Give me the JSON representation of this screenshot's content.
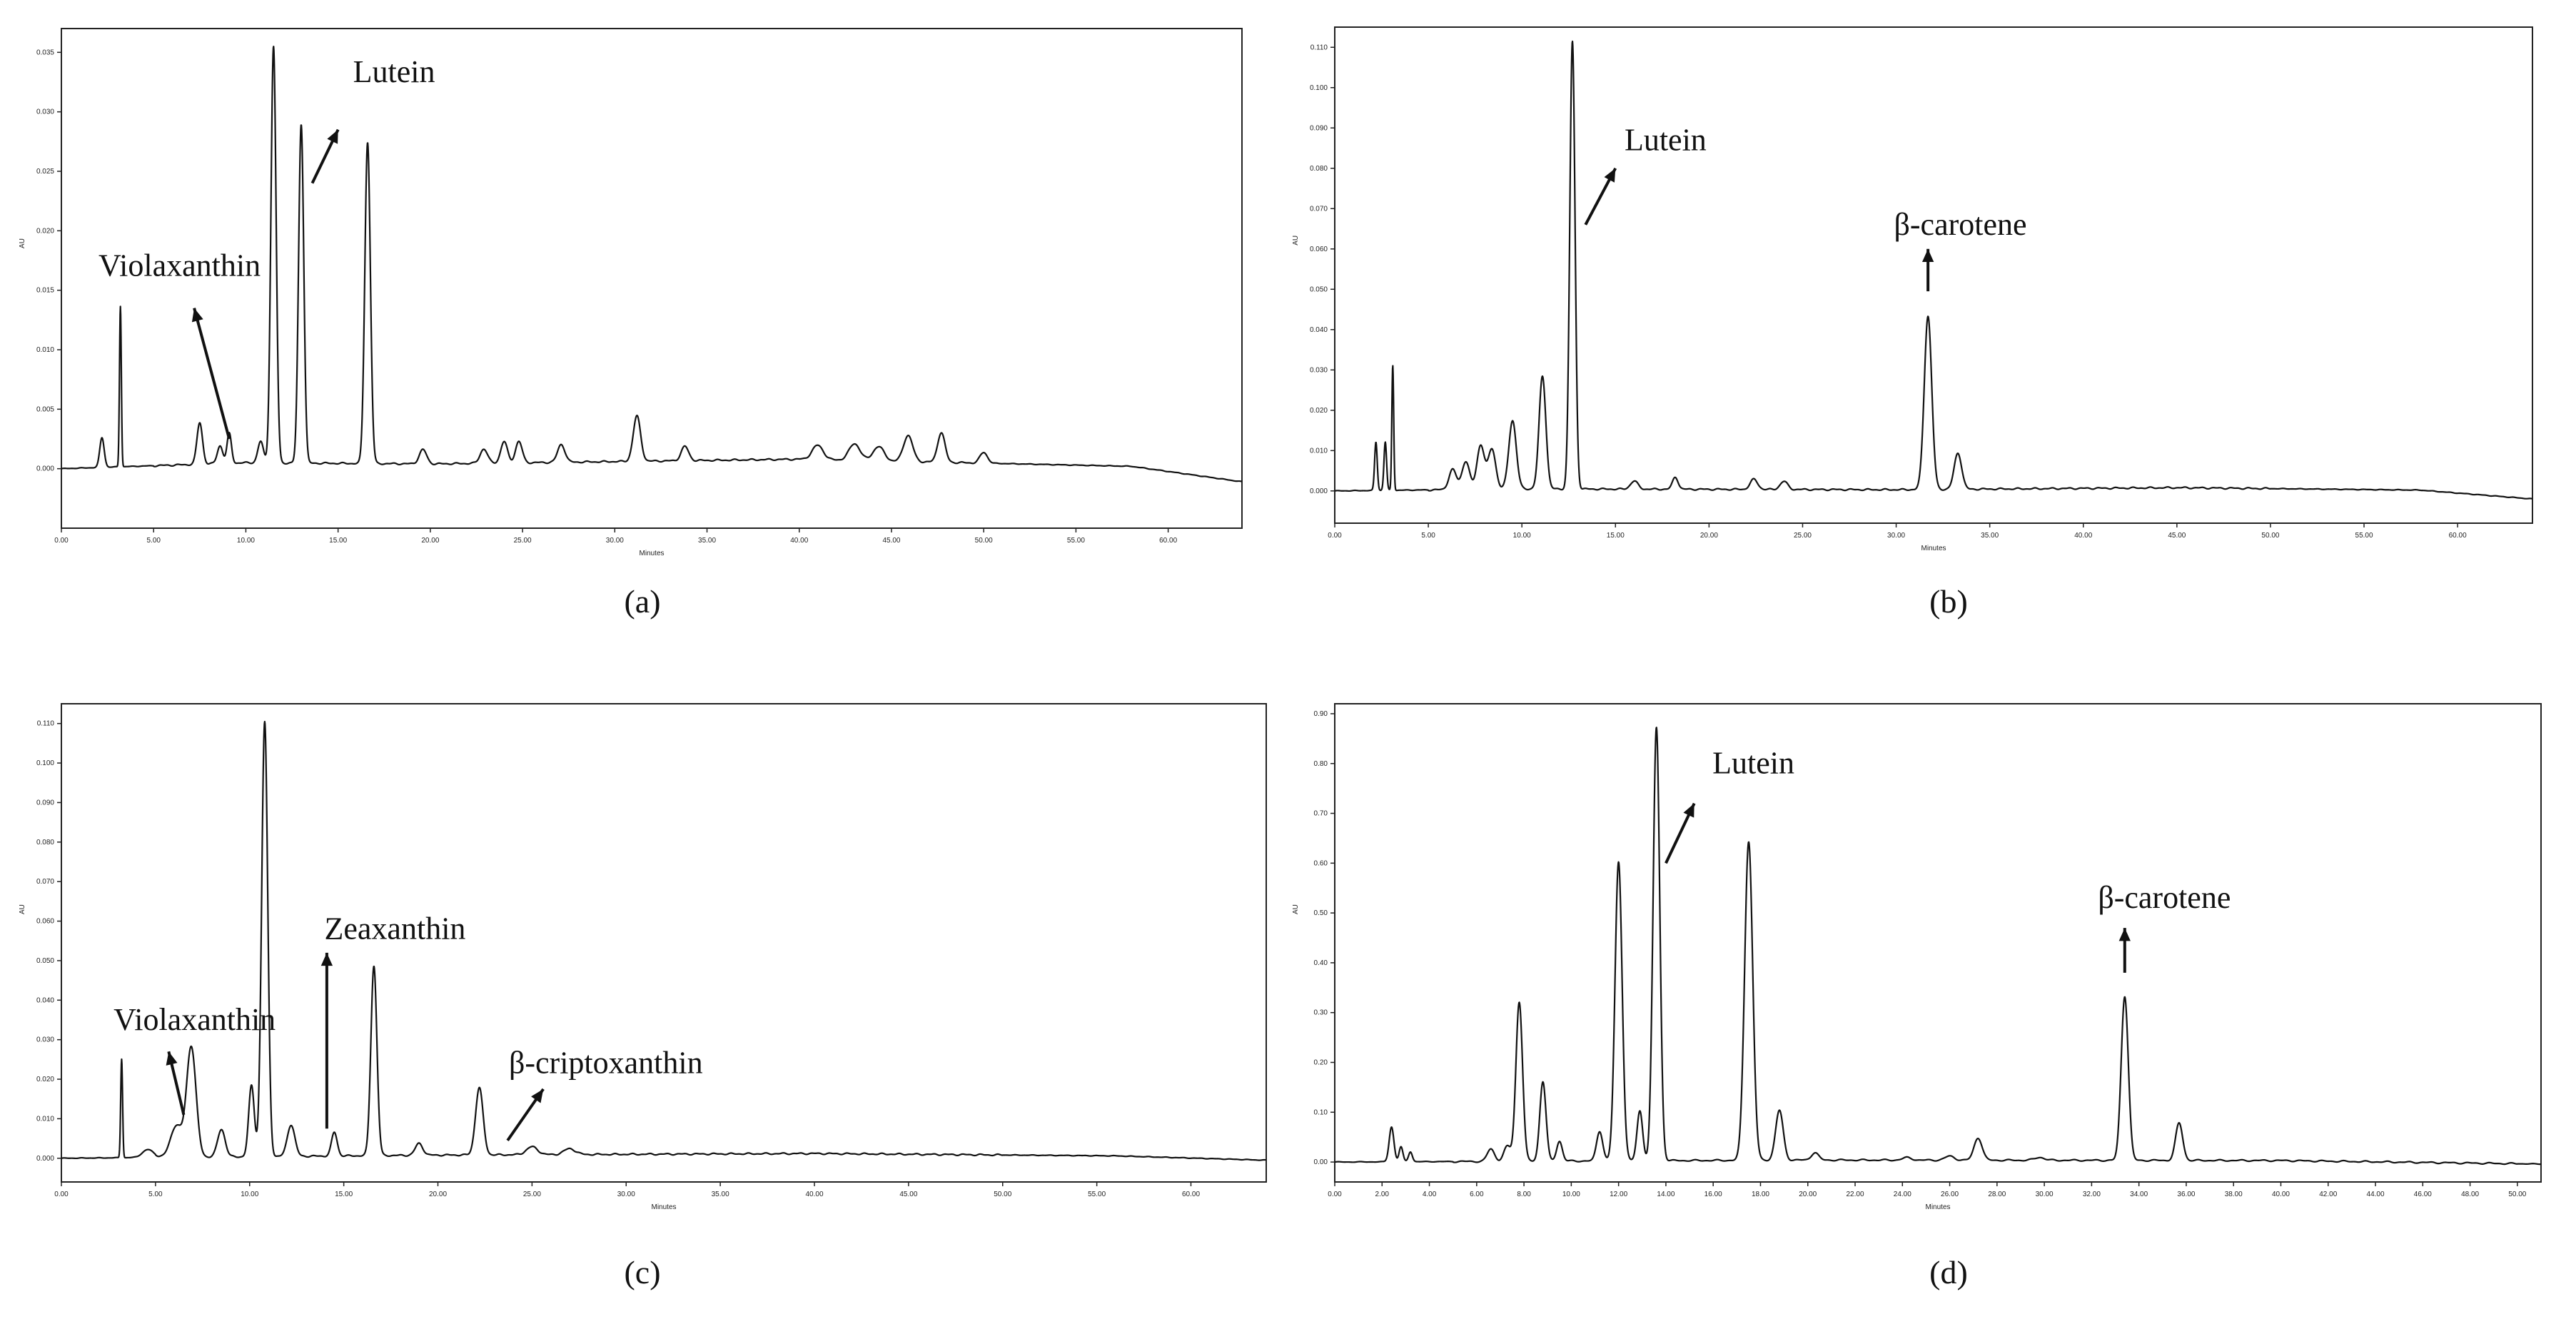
{
  "chart_data": [
    {
      "id": "a",
      "type": "line",
      "caption": "(a)",
      "ylabel": "AU",
      "xlabel": "Minutes",
      "xlim": [
        0,
        64
      ],
      "ylim": [
        -0.005,
        0.037
      ],
      "xticks": [
        "0.00",
        "5.00",
        "10.00",
        "15.00",
        "20.00",
        "25.00",
        "30.00",
        "35.00",
        "40.00",
        "45.00",
        "50.00",
        "55.00",
        "60.00"
      ],
      "xtick_values": [
        0,
        5,
        10,
        15,
        20,
        25,
        30,
        35,
        40,
        45,
        50,
        55,
        60
      ],
      "yticks": [
        "0.000",
        "0.005",
        "0.010",
        "0.015",
        "0.020",
        "0.025",
        "0.030",
        "0.035"
      ],
      "ytick_values": [
        0,
        0.005,
        0.01,
        0.015,
        0.02,
        0.025,
        0.03,
        0.035
      ],
      "baseline": [
        [
          0,
          0
        ],
        [
          10,
          0.0005
        ],
        [
          20,
          0.0004
        ],
        [
          40,
          0.0008
        ],
        [
          55,
          0.0003
        ],
        [
          58,
          0.0002
        ],
        [
          64,
          -0.0011
        ]
      ],
      "peaks": [
        {
          "x": 2.2,
          "h": 0.0025,
          "w": 0.12
        },
        {
          "x": 3.2,
          "h": 0.0135,
          "w": 0.05
        },
        {
          "x": 7.5,
          "h": 0.0035,
          "w": 0.15
        },
        {
          "x": 8.6,
          "h": 0.0015,
          "w": 0.15
        },
        {
          "x": 9.1,
          "h": 0.0025,
          "w": 0.12
        },
        {
          "x": 10.8,
          "h": 0.0018,
          "w": 0.15
        },
        {
          "x": 11.5,
          "h": 0.035,
          "w": 0.14
        },
        {
          "x": 13.0,
          "h": 0.0285,
          "w": 0.14
        },
        {
          "x": 16.6,
          "h": 0.027,
          "w": 0.15
        },
        {
          "x": 19.6,
          "h": 0.0012,
          "w": 0.2
        },
        {
          "x": 22.9,
          "h": 0.0012,
          "w": 0.2
        },
        {
          "x": 24.0,
          "h": 0.0018,
          "w": 0.18
        },
        {
          "x": 24.8,
          "h": 0.0018,
          "w": 0.18
        },
        {
          "x": 27.1,
          "h": 0.0015,
          "w": 0.2
        },
        {
          "x": 31.2,
          "h": 0.0038,
          "w": 0.2
        },
        {
          "x": 33.8,
          "h": 0.0012,
          "w": 0.2
        },
        {
          "x": 41.0,
          "h": 0.0012,
          "w": 0.3
        },
        {
          "x": 43.0,
          "h": 0.0014,
          "w": 0.3
        },
        {
          "x": 44.3,
          "h": 0.0012,
          "w": 0.3
        },
        {
          "x": 45.9,
          "h": 0.0022,
          "w": 0.25
        },
        {
          "x": 47.7,
          "h": 0.0025,
          "w": 0.2
        },
        {
          "x": 50.0,
          "h": 0.0009,
          "w": 0.2
        }
      ],
      "annotations": [
        {
          "text": "Violaxanthin",
          "lx": 0.0,
          "ly": 0.0162,
          "ax1": 9.1,
          "ay1": 0.0025,
          "ax2": 7.2,
          "ay2": 0.0135
        },
        {
          "text": "Lutein",
          "lx": 13.8,
          "ly": 0.0325,
          "ax1": 13.6,
          "ay1": 0.024,
          "ax2": 15.0,
          "ay2": 0.0285
        }
      ]
    },
    {
      "id": "b",
      "type": "line",
      "caption": "(b)",
      "ylabel": "AU",
      "xlabel": "Minutes",
      "xlim": [
        0,
        64
      ],
      "ylim": [
        -0.008,
        0.115
      ],
      "xticks": [
        "0.00",
        "5.00",
        "10.00",
        "15.00",
        "20.00",
        "25.00",
        "30.00",
        "35.00",
        "40.00",
        "45.00",
        "50.00",
        "55.00",
        "60.00"
      ],
      "xtick_values": [
        0,
        5,
        10,
        15,
        20,
        25,
        30,
        35,
        40,
        45,
        50,
        55,
        60
      ],
      "yticks": [
        "0.000",
        "0.010",
        "0.020",
        "0.030",
        "0.040",
        "0.050",
        "0.060",
        "0.070",
        "0.080",
        "0.090",
        "0.100",
        "0.110"
      ],
      "ytick_values": [
        0,
        0.01,
        0.02,
        0.03,
        0.04,
        0.05,
        0.06,
        0.07,
        0.08,
        0.09,
        0.1,
        0.11
      ],
      "baseline": [
        [
          0,
          0
        ],
        [
          10,
          0.0005
        ],
        [
          30,
          0.0003
        ],
        [
          45,
          0.0008
        ],
        [
          58,
          0.0002
        ],
        [
          64,
          -0.002
        ]
      ],
      "peaks": [
        {
          "x": 2.2,
          "h": 0.012,
          "w": 0.07
        },
        {
          "x": 2.7,
          "h": 0.012,
          "w": 0.07
        },
        {
          "x": 3.1,
          "h": 0.031,
          "w": 0.05
        },
        {
          "x": 6.3,
          "h": 0.005,
          "w": 0.2
        },
        {
          "x": 7.0,
          "h": 0.007,
          "w": 0.2
        },
        {
          "x": 7.8,
          "h": 0.011,
          "w": 0.2
        },
        {
          "x": 8.4,
          "h": 0.01,
          "w": 0.2
        },
        {
          "x": 9.5,
          "h": 0.017,
          "w": 0.2
        },
        {
          "x": 11.1,
          "h": 0.028,
          "w": 0.18
        },
        {
          "x": 12.7,
          "h": 0.111,
          "w": 0.14
        },
        {
          "x": 16.0,
          "h": 0.002,
          "w": 0.2
        },
        {
          "x": 18.2,
          "h": 0.003,
          "w": 0.15
        },
        {
          "x": 22.4,
          "h": 0.0025,
          "w": 0.2
        },
        {
          "x": 24.0,
          "h": 0.002,
          "w": 0.2
        },
        {
          "x": 31.7,
          "h": 0.043,
          "w": 0.2
        },
        {
          "x": 33.3,
          "h": 0.009,
          "w": 0.2
        }
      ],
      "annotations": [
        {
          "text": "Lutein",
          "lx": 13.5,
          "ly": 0.0845,
          "ax1": 13.4,
          "ay1": 0.066,
          "ax2": 15.0,
          "ay2": 0.08
        },
        {
          "text": "β-carotene",
          "lx": 27.9,
          "ly": 0.0635,
          "ax1": 31.7,
          "ay1": 0.0495,
          "ax2": 31.7,
          "ay2": 0.06
        }
      ]
    },
    {
      "id": "c",
      "type": "line",
      "caption": "(c)",
      "ylabel": "AU",
      "xlabel": "Minutes",
      "xlim": [
        0,
        64
      ],
      "ylim": [
        -0.006,
        0.115
      ],
      "xticks": [
        "0.00",
        "5.00",
        "10.00",
        "15.00",
        "20.00",
        "25.00",
        "30.00",
        "35.00",
        "40.00",
        "45.00",
        "50.00",
        "55.00",
        "60.00"
      ],
      "xtick_values": [
        0,
        5,
        10,
        15,
        20,
        25,
        30,
        35,
        40,
        45,
        50,
        55,
        60
      ],
      "yticks": [
        "0.000",
        "0.010",
        "0.020",
        "0.030",
        "0.040",
        "0.050",
        "0.060",
        "0.070",
        "0.080",
        "0.090",
        "0.100",
        "0.110"
      ],
      "ytick_values": [
        0,
        0.01,
        0.02,
        0.03,
        0.04,
        0.05,
        0.06,
        0.07,
        0.08,
        0.09,
        0.1,
        0.11
      ],
      "baseline": [
        [
          0,
          0
        ],
        [
          20,
          0.0008
        ],
        [
          40,
          0.0012
        ],
        [
          56,
          0.0006
        ],
        [
          64,
          -0.0005
        ]
      ],
      "peaks": [
        {
          "x": 3.2,
          "h": 0.025,
          "w": 0.05
        },
        {
          "x": 4.6,
          "h": 0.002,
          "w": 0.3
        },
        {
          "x": 6.1,
          "h": 0.008,
          "w": 0.3
        },
        {
          "x": 6.9,
          "h": 0.028,
          "w": 0.25
        },
        {
          "x": 8.5,
          "h": 0.007,
          "w": 0.2
        },
        {
          "x": 10.1,
          "h": 0.018,
          "w": 0.15
        },
        {
          "x": 10.8,
          "h": 0.11,
          "w": 0.16
        },
        {
          "x": 12.2,
          "h": 0.008,
          "w": 0.2
        },
        {
          "x": 14.5,
          "h": 0.006,
          "w": 0.15
        },
        {
          "x": 16.6,
          "h": 0.048,
          "w": 0.16
        },
        {
          "x": 19.0,
          "h": 0.003,
          "w": 0.2
        },
        {
          "x": 22.2,
          "h": 0.017,
          "w": 0.2
        },
        {
          "x": 25.0,
          "h": 0.002,
          "w": 0.3
        },
        {
          "x": 27.0,
          "h": 0.0015,
          "w": 0.3
        }
      ],
      "annotations": [
        {
          "text": "Violaxanthin",
          "lx": 0.8,
          "ly": 0.0325,
          "ax1": 6.5,
          "ay1": 0.011,
          "ax2": 5.7,
          "ay2": 0.027
        },
        {
          "text": "Zeaxanthin",
          "lx": 12.0,
          "ly": 0.0555,
          "ax1": 14.1,
          "ay1": 0.0075,
          "ax2": 14.1,
          "ay2": 0.052
        },
        {
          "text": "β-criptoxanthin",
          "lx": 21.8,
          "ly": 0.0215,
          "ax1": 23.7,
          "ay1": 0.0045,
          "ax2": 25.6,
          "ay2": 0.0175
        }
      ]
    },
    {
      "id": "d",
      "type": "line",
      "caption": "(d)",
      "ylabel": "AU",
      "xlabel": "Minutes",
      "xlim": [
        0,
        51
      ],
      "ylim": [
        -0.04,
        0.92
      ],
      "xticks": [
        "0.00",
        "2.00",
        "4.00",
        "6.00",
        "8.00",
        "10.00",
        "12.00",
        "14.00",
        "16.00",
        "18.00",
        "20.00",
        "22.00",
        "24.00",
        "26.00",
        "28.00",
        "30.00",
        "32.00",
        "34.00",
        "36.00",
        "38.00",
        "40.00",
        "42.00",
        "44.00",
        "46.00",
        "48.00",
        "50.00"
      ],
      "xtick_values": [
        0,
        2,
        4,
        6,
        8,
        10,
        12,
        14,
        16,
        18,
        20,
        22,
        24,
        26,
        28,
        30,
        32,
        34,
        36,
        38,
        40,
        42,
        44,
        46,
        48,
        50
      ],
      "yticks": [
        "0.00",
        "0.10",
        "0.20",
        "0.30",
        "0.40",
        "0.50",
        "0.60",
        "0.70",
        "0.80",
        "0.90"
      ],
      "ytick_values": [
        0,
        0.1,
        0.2,
        0.3,
        0.4,
        0.5,
        0.6,
        0.7,
        0.8,
        0.9
      ],
      "baseline": [
        [
          0,
          0
        ],
        [
          20,
          0.004
        ],
        [
          40,
          0.003
        ],
        [
          51,
          -0.004
        ]
      ],
      "peaks": [
        {
          "x": 2.4,
          "h": 0.07,
          "w": 0.1
        },
        {
          "x": 2.8,
          "h": 0.03,
          "w": 0.08
        },
        {
          "x": 3.2,
          "h": 0.02,
          "w": 0.08
        },
        {
          "x": 6.6,
          "h": 0.025,
          "w": 0.15
        },
        {
          "x": 7.3,
          "h": 0.03,
          "w": 0.15
        },
        {
          "x": 7.8,
          "h": 0.32,
          "w": 0.14
        },
        {
          "x": 8.8,
          "h": 0.16,
          "w": 0.13
        },
        {
          "x": 9.5,
          "h": 0.04,
          "w": 0.12
        },
        {
          "x": 11.2,
          "h": 0.06,
          "w": 0.13
        },
        {
          "x": 12.0,
          "h": 0.6,
          "w": 0.15
        },
        {
          "x": 12.9,
          "h": 0.1,
          "w": 0.12
        },
        {
          "x": 13.6,
          "h": 0.87,
          "w": 0.14
        },
        {
          "x": 17.5,
          "h": 0.64,
          "w": 0.17
        },
        {
          "x": 18.8,
          "h": 0.1,
          "w": 0.16
        },
        {
          "x": 20.3,
          "h": 0.015,
          "w": 0.15
        },
        {
          "x": 24.2,
          "h": 0.005,
          "w": 0.2
        },
        {
          "x": 26.0,
          "h": 0.008,
          "w": 0.2
        },
        {
          "x": 27.2,
          "h": 0.045,
          "w": 0.17
        },
        {
          "x": 29.8,
          "h": 0.006,
          "w": 0.2
        },
        {
          "x": 33.4,
          "h": 0.33,
          "w": 0.15
        },
        {
          "x": 35.7,
          "h": 0.075,
          "w": 0.15
        }
      ],
      "annotations": [
        {
          "text": "Lutein",
          "lx": 14.4,
          "ly": 0.78,
          "ax1": 14.0,
          "ay1": 0.6,
          "ax2": 15.2,
          "ay2": 0.72
        },
        {
          "text": "β-carotene",
          "lx": 30.7,
          "ly": 0.51,
          "ax1": 33.4,
          "ay1": 0.38,
          "ax2": 33.4,
          "ay2": 0.47
        }
      ]
    }
  ]
}
